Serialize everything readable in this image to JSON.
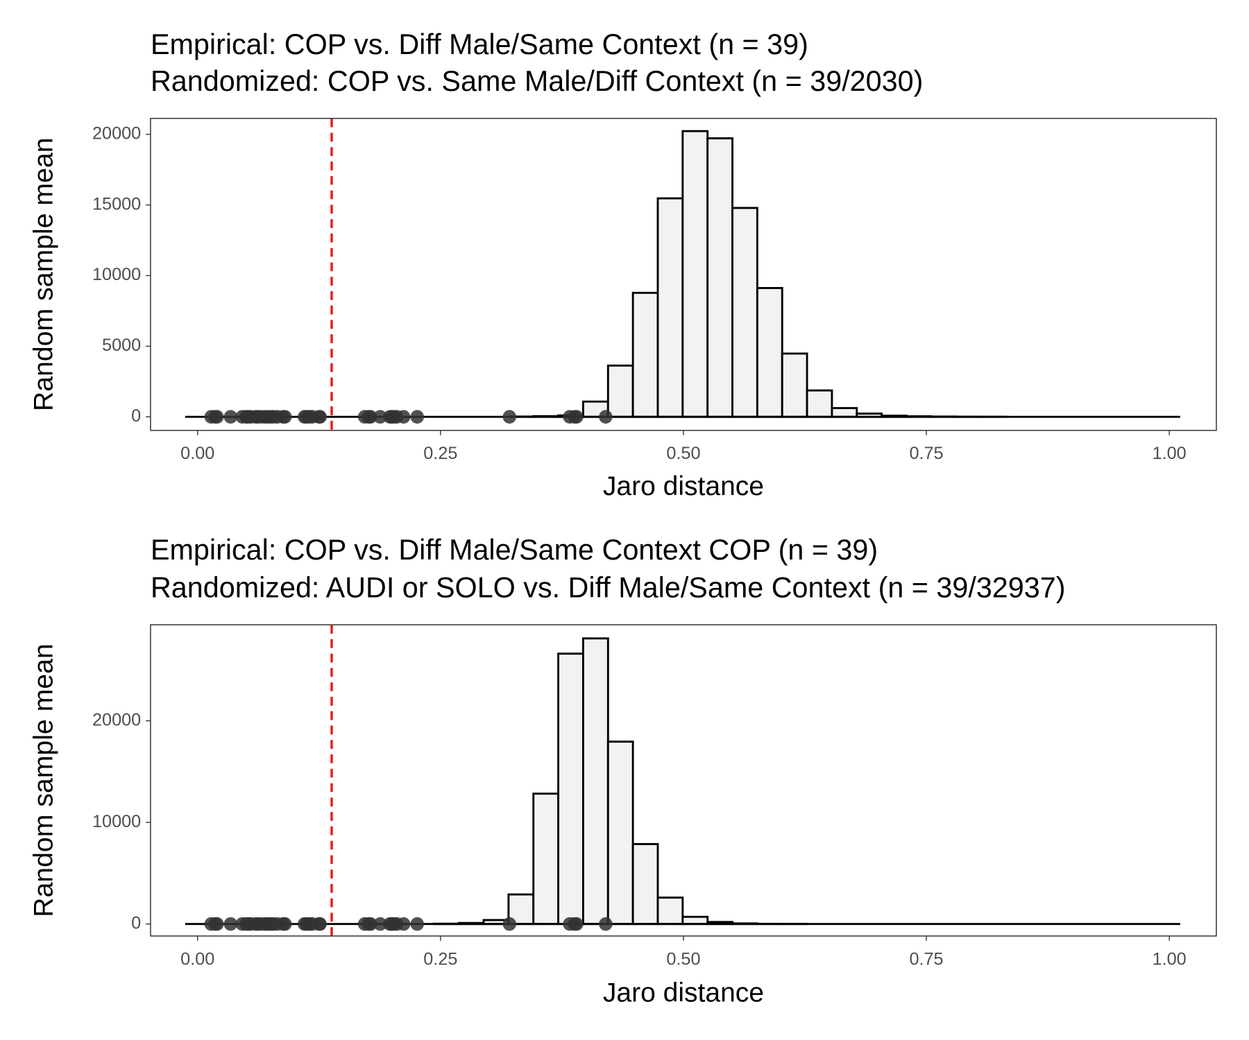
{
  "chart_data": [
    {
      "type": "histogram",
      "title_lines": [
        "Empirical: COP vs. Diff Male/Same Context (n = 39)",
        "Randomized: COP vs. Same Male/Diff Context (n = 39/2030)"
      ],
      "x_label": "Jaro distance",
      "y_label": "Random sample mean",
      "bins": [
        -0.0128,
        0.0128,
        0.0384,
        0.064,
        0.0896,
        0.1152,
        0.1408,
        0.1664,
        0.192,
        0.2176,
        0.2432,
        0.2688,
        0.2944,
        0.32,
        0.3456,
        0.3712,
        0.3968,
        0.4224,
        0.448,
        0.4736,
        0.4992,
        0.5248,
        0.5504,
        0.576,
        0.6016,
        0.6272,
        0.6528,
        0.6784,
        0.704,
        0.7296,
        0.7552,
        0.7808,
        0.8064,
        0.832,
        0.8576,
        0.8832,
        0.9088,
        0.9344,
        0.96,
        0.9856,
        1.0112
      ],
      "counts": [
        0,
        0,
        0,
        0,
        0,
        0,
        0,
        0,
        0,
        0,
        0,
        0,
        0,
        20,
        50,
        100,
        1080,
        3630,
        8780,
        15470,
        20230,
        19720,
        14790,
        9120,
        4480,
        1870,
        620,
        230,
        80,
        40,
        20,
        10,
        5,
        0,
        0,
        0,
        0,
        0,
        0,
        0
      ],
      "bar_fill": "#f2f2f2",
      "bar_stroke": "#000000",
      "points": {
        "color": "#333333",
        "x": [
          0.014,
          0.018,
          0.02,
          0.034,
          0.046,
          0.05,
          0.052,
          0.055,
          0.06,
          0.062,
          0.066,
          0.07,
          0.072,
          0.075,
          0.078,
          0.082,
          0.088,
          0.09,
          0.11,
          0.112,
          0.115,
          0.118,
          0.125,
          0.126,
          0.172,
          0.176,
          0.178,
          0.188,
          0.198,
          0.2,
          0.202,
          0.205,
          0.212,
          0.226,
          0.321,
          0.383,
          0.388,
          0.39,
          0.42
        ],
        "y": [
          0,
          0,
          0,
          0,
          0,
          0,
          0,
          0,
          0,
          0,
          0,
          0,
          0,
          0,
          0,
          0,
          0,
          0,
          0,
          0,
          0,
          0,
          0,
          0,
          0,
          0,
          0,
          0,
          0,
          0,
          0,
          0,
          0,
          0,
          0,
          0,
          0,
          0,
          0
        ]
      },
      "vline": {
        "x": 0.138,
        "color": "#e41a1c"
      },
      "xlim": [
        -0.0484,
        1.0484
      ],
      "xticks": [
        {
          "value": 0,
          "label": "0.00"
        },
        {
          "value": 0.25,
          "label": "0.25"
        },
        {
          "value": 0.5,
          "label": "0.50"
        },
        {
          "value": 0.75,
          "label": "0.75"
        },
        {
          "value": 1,
          "label": "1.00"
        }
      ],
      "ylim": [
        -960,
        21130
      ],
      "yticks": [
        0,
        5000,
        10000,
        15000,
        20000
      ],
      "grid": false
    },
    {
      "type": "histogram",
      "title_lines": [
        "Empirical: COP vs. Diff Male/Same Context COP (n = 39)",
        "Randomized: AUDI or SOLO vs. Diff Male/Same Context (n = 39/32937)"
      ],
      "x_label": "Jaro distance",
      "y_label": "Random sample mean",
      "bins": [
        -0.0128,
        0.0128,
        0.0384,
        0.064,
        0.0896,
        0.1152,
        0.1408,
        0.1664,
        0.192,
        0.2176,
        0.2432,
        0.2688,
        0.2944,
        0.32,
        0.3456,
        0.3712,
        0.3968,
        0.4224,
        0.448,
        0.4736,
        0.4992,
        0.5248,
        0.5504,
        0.576,
        0.6016,
        0.6272,
        0.6528,
        0.6784,
        0.704,
        0.7296,
        0.7552,
        0.7808,
        0.8064,
        0.832,
        0.8576,
        0.8832,
        0.9088,
        0.9344,
        0.96,
        0.9856,
        1.0112
      ],
      "counts": [
        0,
        0,
        0,
        0,
        0,
        0,
        0,
        0,
        0,
        0,
        30,
        100,
        390,
        2910,
        12830,
        26610,
        28110,
        17950,
        7870,
        2600,
        710,
        200,
        60,
        20,
        10,
        0,
        0,
        0,
        0,
        0,
        0,
        0,
        0,
        0,
        0,
        0,
        0,
        0,
        0,
        0
      ],
      "bar_fill": "#f2f2f2",
      "bar_stroke": "#000000",
      "points": {
        "color": "#333333",
        "x": [
          0.014,
          0.018,
          0.02,
          0.034,
          0.046,
          0.05,
          0.052,
          0.055,
          0.06,
          0.062,
          0.066,
          0.07,
          0.072,
          0.075,
          0.078,
          0.082,
          0.088,
          0.09,
          0.11,
          0.112,
          0.115,
          0.118,
          0.125,
          0.126,
          0.172,
          0.176,
          0.178,
          0.188,
          0.198,
          0.2,
          0.202,
          0.205,
          0.212,
          0.226,
          0.321,
          0.383,
          0.388,
          0.39,
          0.42
        ],
        "y": [
          0,
          0,
          0,
          0,
          0,
          0,
          0,
          0,
          0,
          0,
          0,
          0,
          0,
          0,
          0,
          0,
          0,
          0,
          0,
          0,
          0,
          0,
          0,
          0,
          0,
          0,
          0,
          0,
          0,
          0,
          0,
          0,
          0,
          0,
          0,
          0,
          0,
          0,
          0
        ]
      },
      "vline": {
        "x": 0.138,
        "color": "#e41a1c"
      },
      "xlim": [
        -0.0484,
        1.0484
      ],
      "xticks": [
        {
          "value": 0,
          "label": "0.00"
        },
        {
          "value": 0.25,
          "label": "0.25"
        },
        {
          "value": 0.5,
          "label": "0.50"
        },
        {
          "value": 0.75,
          "label": "0.75"
        },
        {
          "value": 1,
          "label": "1.00"
        }
      ],
      "ylim": [
        -1180,
        29450
      ],
      "yticks": [
        0,
        10000,
        20000
      ],
      "grid": false
    }
  ]
}
